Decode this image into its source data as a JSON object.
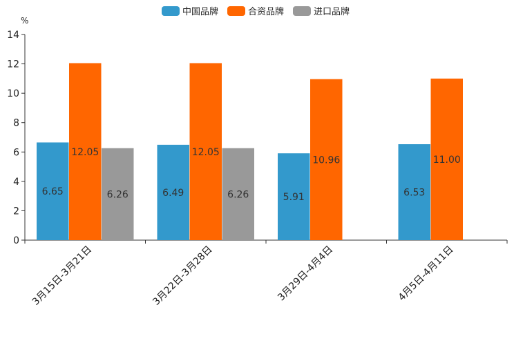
{
  "chart_data": {
    "type": "bar",
    "unit_label": "%",
    "ylim": [
      0,
      14
    ],
    "y_ticks": [
      0,
      2,
      4,
      6,
      8,
      10,
      12,
      14
    ],
    "categories": [
      "3月15日-3月21日",
      "3月22日-3月28日",
      "3月29日-4月4日",
      "4月5日-4月11日"
    ],
    "series": [
      {
        "name": "中国品牌",
        "color": "#3399CC",
        "values": [
          6.65,
          6.49,
          5.91,
          6.53
        ],
        "labels": [
          "6.65",
          "6.49",
          "5.91",
          "6.53"
        ]
      },
      {
        "name": "合资品牌",
        "color": "#FF6600",
        "values": [
          12.05,
          12.05,
          10.96,
          11.0
        ],
        "labels": [
          "12.05",
          "12.05",
          "10.96",
          "11.00"
        ]
      },
      {
        "name": "进口品牌",
        "color": "#999999",
        "values": [
          6.26,
          6.26,
          null,
          null
        ],
        "labels": [
          "6.26",
          "6.26",
          null,
          null
        ]
      }
    ],
    "legend_position": "top-center",
    "grid": false
  }
}
